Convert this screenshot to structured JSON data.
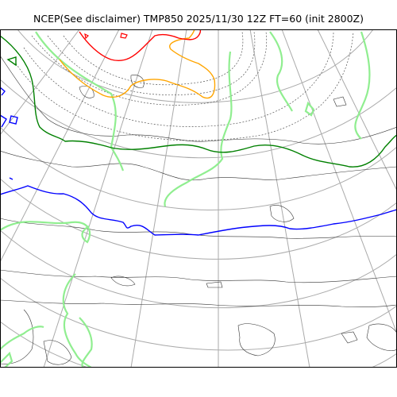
{
  "title": "NCEP(See disclaimer) TMP850 2025/11/30 12Z FT=60 (init 2800Z)",
  "map": {
    "projection": "polar-stereographic",
    "variable": "TMP850",
    "grid_color": "#aaaaaa",
    "coast_color": "#222222",
    "contours": [
      {
        "name": "cold-isotherm-red",
        "color": "#ff0000"
      },
      {
        "name": "isotherm-orange",
        "color": "#ffa500"
      },
      {
        "name": "isotherm-green",
        "color": "#008000"
      },
      {
        "name": "isotherm-blue",
        "color": "#0000ff"
      },
      {
        "name": "isotherm-lightgreen",
        "color": "#90ee90"
      },
      {
        "name": "isotherm-dotted",
        "color": "#555555"
      }
    ]
  }
}
